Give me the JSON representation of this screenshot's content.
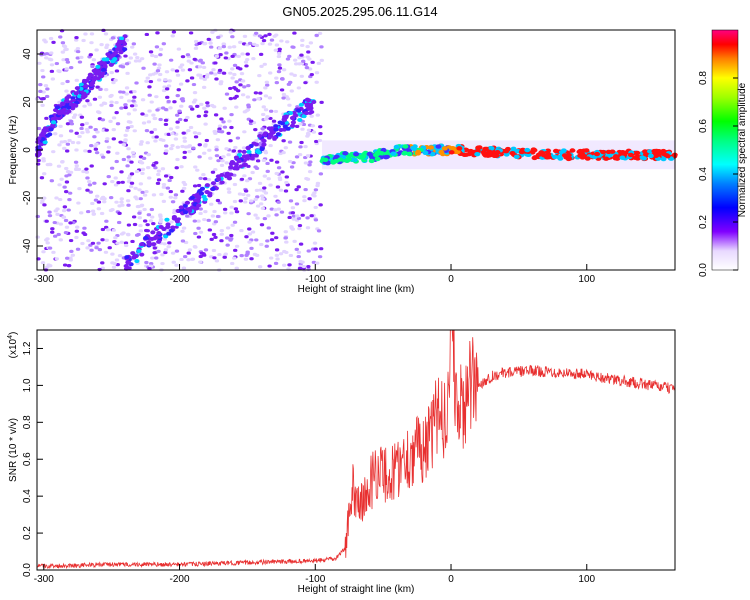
{
  "title": "GN05.2025.295.06.11.G14",
  "colorbar": {
    "label": "Normalized spectral amplitude",
    "ticks": [
      "0.0",
      "0.2",
      "0.4",
      "0.6",
      "0.8"
    ],
    "colormap": [
      "#ff00ff",
      "#8000ff",
      "#0000ff",
      "#0080ff",
      "#00ffff",
      "#00ff80",
      "#00ff00",
      "#80ff00",
      "#ffff00",
      "#ff8000",
      "#ff0000",
      "#ff0080"
    ]
  },
  "chart_data": [
    {
      "type": "heatmap",
      "id": "spectrogram",
      "xlabel": "Height of straight line (km)",
      "ylabel": "Frequency (Hz)",
      "xlim": [
        -305,
        165
      ],
      "ylim": [
        -50,
        50
      ],
      "xticks": [
        "-300",
        "-200",
        "-100",
        "0",
        "100"
      ],
      "yticks": [
        "-40",
        "-20",
        "0",
        "20",
        "40"
      ],
      "description_series": [
        {
          "name": "",
          "x": [
            -240,
            -225,
            -200,
            -175,
            -150,
            -125,
            -100
          ],
          "y": [
            -48,
            -40,
            -28,
            -15,
            -2,
            10,
            20
          ]
        },
        {
          "name": "",
          "x": [
            -305,
            -290,
            -270,
            -255,
            -240
          ],
          "y": [
            0,
            15,
            25,
            35,
            45
          ]
        },
        {
          "name": "",
          "x": [
            -95,
            -80,
            -60,
            -40,
            -20,
            0,
            40,
            80,
            120,
            165
          ],
          "y": [
            -5,
            -3,
            -3,
            0,
            0,
            0,
            -1,
            -2,
            -2,
            -2
          ]
        }
      ],
      "grid": false
    },
    {
      "type": "line",
      "id": "snr",
      "xlabel": "Height of straight line (km)",
      "ylabel": "SNR (10 * v/v)",
      "scale_label": "(x10",
      "scale_exp": "4",
      "xlim": [
        -305,
        165
      ],
      "ylim": [
        0,
        1.3
      ],
      "xticks": [
        "-300",
        "-200",
        "-100",
        "0",
        "100"
      ],
      "yticks": [
        "0.0",
        "0.2",
        "0.4",
        "0.6",
        "0.8",
        "1.0",
        "1.2"
      ],
      "series": [
        {
          "name": "",
          "color": "#e83030",
          "x": [
            -305,
            -250,
            -200,
            -150,
            -100,
            -85,
            -78,
            -72,
            -65,
            -55,
            -45,
            -35,
            -25,
            -15,
            -8,
            -4,
            0,
            5,
            10,
            15,
            20,
            30,
            40,
            60,
            80,
            100,
            120,
            140,
            165
          ],
          "y": [
            0.02,
            0.03,
            0.03,
            0.04,
            0.05,
            0.06,
            0.12,
            0.45,
            0.35,
            0.55,
            0.5,
            0.6,
            0.65,
            0.7,
            0.9,
            0.8,
            1.3,
            0.85,
            0.9,
            1.0,
            1.0,
            1.05,
            1.07,
            1.08,
            1.07,
            1.06,
            1.03,
            1.01,
            0.98
          ]
        }
      ],
      "grid": false
    }
  ]
}
